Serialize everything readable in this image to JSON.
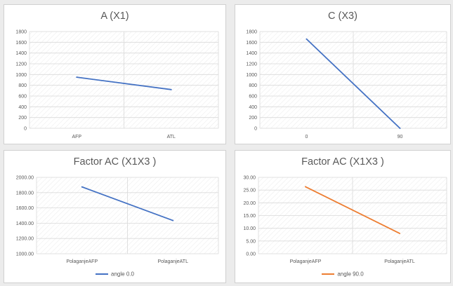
{
  "colors": {
    "blue": "#4472c4",
    "orange": "#ed7d31",
    "grid": "#d9d9d9",
    "text": "#595959"
  },
  "chart_data": [
    {
      "type": "line",
      "title": "A (X1)",
      "categories": [
        "AFP",
        "ATL"
      ],
      "series": [
        {
          "values": [
            950,
            720
          ],
          "color": "#4472c4"
        }
      ],
      "ylim": [
        0,
        1800
      ],
      "ystep": 200,
      "ydecimals": 0,
      "grid": true,
      "legend": null
    },
    {
      "type": "line",
      "title": "C (X3)",
      "categories": [
        "0",
        "90"
      ],
      "series": [
        {
          "values": [
            1660,
            0
          ],
          "color": "#4472c4"
        }
      ],
      "ylim": [
        0,
        1800
      ],
      "ystep": 200,
      "ydecimals": 0,
      "grid": true,
      "legend": null
    },
    {
      "type": "line",
      "title": "Factor AC (X1X3 )",
      "categories": [
        "PolaganjeAFP",
        "PolaganjeATL"
      ],
      "series": [
        {
          "name": "angle 0.0",
          "values": [
            1875,
            1435
          ],
          "color": "#4472c4"
        }
      ],
      "ylim": [
        1000,
        2000
      ],
      "ystep": 200,
      "ydecimals": 2,
      "grid": true,
      "legend": "bottom"
    },
    {
      "type": "line",
      "title": "Factor AC (X1X3 )",
      "categories": [
        "PolaganjeAFP",
        "PolaganjeATL"
      ],
      "series": [
        {
          "name": "angle 90.0",
          "values": [
            26.3,
            8.0
          ],
          "color": "#ed7d31"
        }
      ],
      "ylim": [
        0,
        30
      ],
      "ystep": 5,
      "ydecimals": 2,
      "grid": true,
      "legend": "bottom"
    }
  ]
}
